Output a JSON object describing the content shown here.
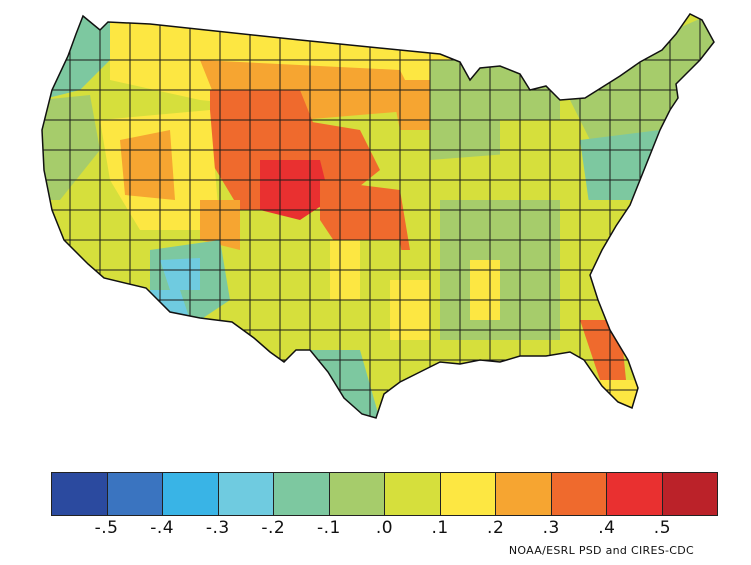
{
  "legend": {
    "colors": [
      "#2b4a9f",
      "#3a74c0",
      "#39b4e6",
      "#6fcbe0",
      "#7dc8a0",
      "#a6cc6b",
      "#d6df3c",
      "#fde742",
      "#f6a531",
      "#ef6a2d",
      "#e93030",
      "#bb2229"
    ],
    "ticks": [
      "-.5",
      "-.4",
      "-.3",
      "-.2",
      "-.1",
      ".0",
      ".1",
      ".2",
      ".3",
      ".4",
      ".5"
    ]
  },
  "credit": "NOAA/ESRL PSD and CIRES-CDC"
}
